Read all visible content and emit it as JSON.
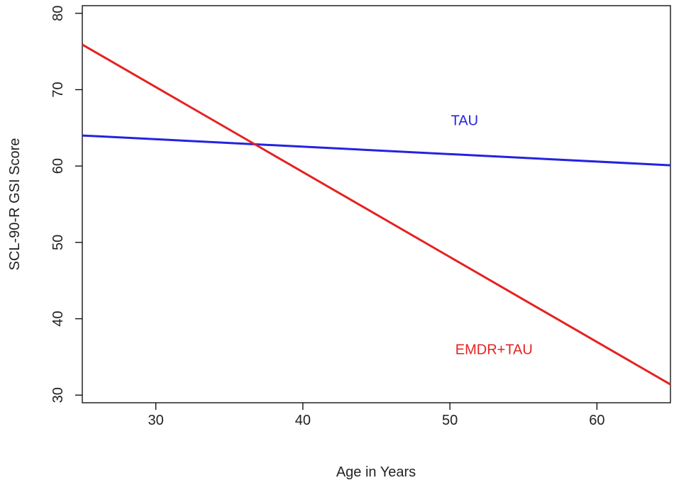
{
  "chart_data": {
    "type": "line",
    "title": "",
    "xlabel": "Age in Years",
    "ylabel": "SCL-90-R GSI Score",
    "xlim": [
      25,
      65
    ],
    "ylim": [
      29,
      81
    ],
    "x_ticks": [
      30,
      40,
      50,
      60
    ],
    "y_ticks": [
      30,
      40,
      50,
      60,
      70,
      80
    ],
    "grid": false,
    "legend": "none",
    "series": [
      {
        "name": "TAU",
        "color": "#2323e0",
        "points": [
          {
            "x": 25,
            "y": 64.0
          },
          {
            "x": 65,
            "y": 60.1
          }
        ],
        "label_at": {
          "x": 51,
          "y": 66
        }
      },
      {
        "name": "EMDR+TAU",
        "color": "#e52222",
        "points": [
          {
            "x": 25,
            "y": 75.9
          },
          {
            "x": 65,
            "y": 31.4
          }
        ],
        "label_at": {
          "x": 53,
          "y": 36
        }
      }
    ]
  }
}
